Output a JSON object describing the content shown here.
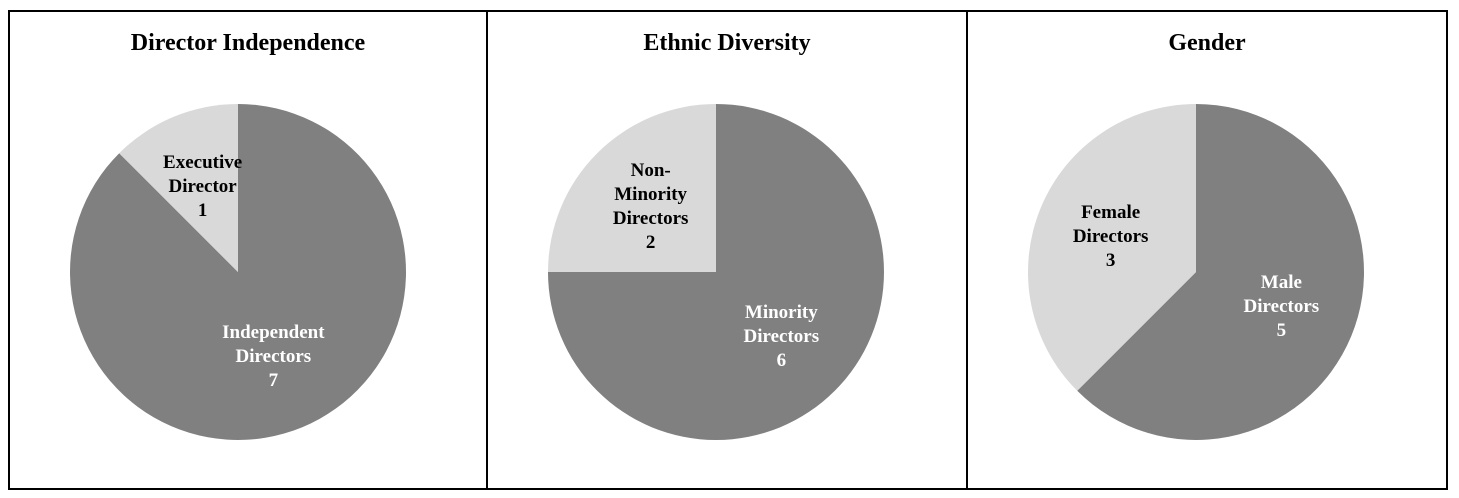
{
  "chart_data": [
    {
      "type": "pie",
      "title": "Director Independence",
      "categories": [
        "Independent Directors",
        "Executive Director"
      ],
      "values": [
        7,
        1
      ],
      "colors": [
        "#808080",
        "#d9d9d9"
      ]
    },
    {
      "type": "pie",
      "title": "Ethnic Diversity",
      "categories": [
        "Minority Directors",
        "Non-Minority Directors"
      ],
      "values": [
        6,
        2
      ],
      "colors": [
        "#808080",
        "#d9d9d9"
      ]
    },
    {
      "type": "pie",
      "title": "Gender",
      "categories": [
        "Male Directors",
        "Female Directors"
      ],
      "values": [
        5,
        3
      ],
      "colors": [
        "#808080",
        "#d9d9d9"
      ]
    }
  ]
}
